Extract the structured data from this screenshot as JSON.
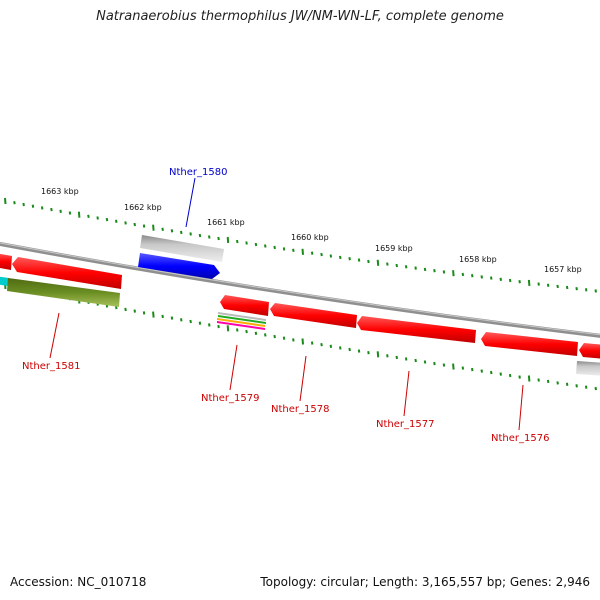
{
  "title": "Natranaerobius thermophilus JW/NM-WN-LF, complete genome",
  "footer": {
    "accession": "Accession: NC_010718",
    "info": "Topology: circular; Length: 3,165,557 bp; Genes: 2,946"
  },
  "scale_labels": [
    {
      "text": "1663 kbp",
      "kbp": 1663
    },
    {
      "text": "1662 kbp",
      "kbp": 1662
    },
    {
      "text": "1661 kbp",
      "kbp": 1661
    },
    {
      "text": "1660 kbp",
      "kbp": 1660
    },
    {
      "text": "1659 kbp",
      "kbp": 1659
    },
    {
      "text": "1658 kbp",
      "kbp": 1658
    },
    {
      "text": "1657 kbp",
      "kbp": 1657
    }
  ],
  "gene_labels": [
    {
      "text": "Nther_1580",
      "color": "#0000cc"
    },
    {
      "text": "Nther_1581",
      "color": "#cc0000"
    },
    {
      "text": "Nther_1579",
      "color": "#cc0000"
    },
    {
      "text": "Nther_1578",
      "color": "#cc0000"
    },
    {
      "text": "Nther_1577",
      "color": "#cc0000"
    },
    {
      "text": "Nther_1576",
      "color": "#cc0000"
    }
  ],
  "colors": {
    "forward_gene": "#0000ff",
    "reverse_gene": "#ff0000",
    "backbone": "#888888",
    "tick": "#1a8a1a",
    "feature_green": "#6b8e23",
    "feature_cyan": "#00cccc",
    "feature_grey": "#bbbbbb"
  }
}
